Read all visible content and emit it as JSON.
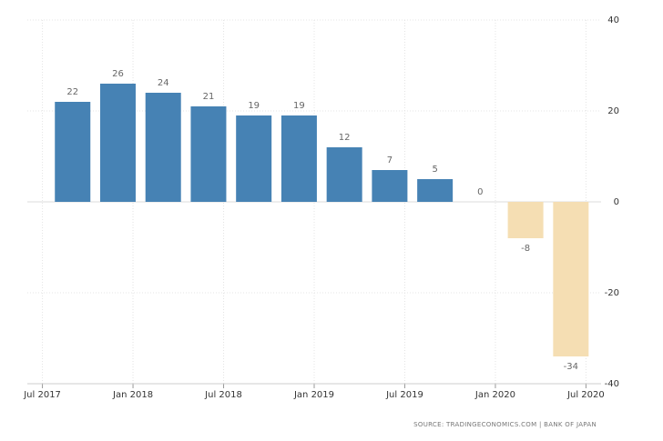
{
  "chart_data": {
    "type": "bar",
    "x": [
      "Sep 2017",
      "Dec 2017",
      "Mar 2018",
      "Jun 2018",
      "Sep 2018",
      "Dec 2018",
      "Mar 2019",
      "Jun 2019",
      "Sep 2019",
      "Dec 2019",
      "Mar 2020",
      "Jun 2020"
    ],
    "values": [
      22,
      26,
      24,
      21,
      19,
      19,
      12,
      7,
      5,
      0,
      -8,
      -34
    ],
    "color": "#4682b4",
    "negative_color": "#f5deb3",
    "xlim": [
      "Jun 2017",
      "Aug 2020"
    ],
    "xticks": [
      "Jul 2017",
      "Jan 2018",
      "Jul 2018",
      "Jan 2019",
      "Jul 2019",
      "Jan 2020",
      "Jul 2020"
    ],
    "ylim": [
      -40,
      40
    ],
    "yticks": [
      -40,
      -20,
      0,
      20,
      40
    ],
    "grid": true,
    "source": "SOURCE: TRADINGECONOMICS.COM | BANK OF JAPAN"
  }
}
